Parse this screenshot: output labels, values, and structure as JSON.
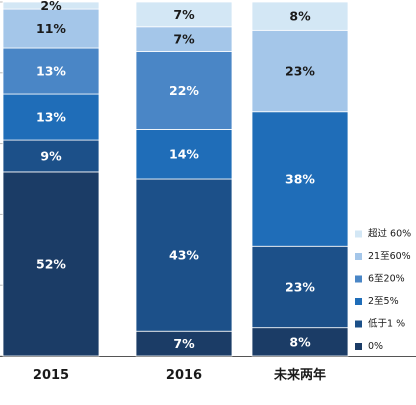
{
  "chart_data": {
    "type": "bar",
    "stacked": true,
    "categories": [
      "2015",
      "2016",
      "未来两年"
    ],
    "series": [
      {
        "name": "0%",
        "color": "#1b3c66",
        "values": [
          52,
          7,
          8
        ],
        "labels": [
          "52%",
          "7%",
          "8%"
        ]
      },
      {
        "name": "低于1%",
        "color": "#1c5089",
        "values": [
          9,
          43,
          23
        ],
        "labels": [
          "9%",
          "43%",
          "23%"
        ]
      },
      {
        "name": "2至5%",
        "color": "#1f6db8",
        "values": [
          13,
          14,
          38
        ],
        "labels": [
          "13%",
          "14%",
          "38%"
        ]
      },
      {
        "name": "6至20%",
        "color": "#4a86c6",
        "values": [
          13,
          22,
          0
        ],
        "labels": [
          "13%",
          "22%",
          ""
        ]
      },
      {
        "name": "21至60%",
        "color": "#a4c6e9",
        "values": [
          11,
          7,
          23
        ],
        "labels": [
          "11%",
          "7%",
          "23%"
        ]
      },
      {
        "name": "超过60%",
        "color": "#d3e7f5",
        "values": [
          2,
          7,
          8
        ],
        "labels": [
          "2%",
          "7%",
          "8%"
        ]
      }
    ],
    "legend": {
      "placement": "right",
      "entries": [
        "超过 60%",
        "21至60%",
        "6至20%",
        "2至5%",
        "低于1 %",
        "0%"
      ]
    },
    "ylim": [
      0,
      100
    ],
    "grid": true
  }
}
